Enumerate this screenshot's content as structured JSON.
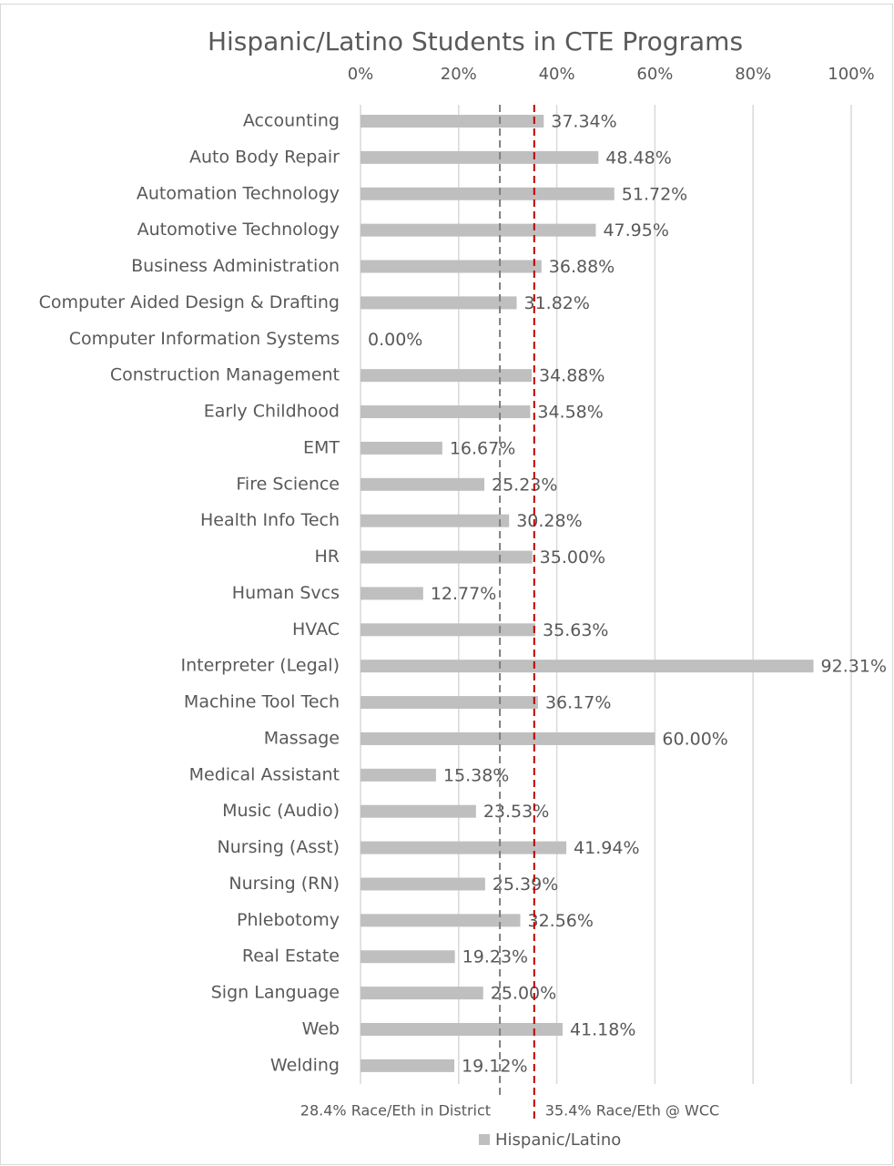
{
  "chart_data": {
    "type": "bar",
    "orientation": "horizontal",
    "title": "Hispanic/Latino Students in CTE Programs",
    "categories": [
      "Accounting",
      "Auto Body Repair",
      "Automation Technology",
      "Automotive Technology",
      "Business Administration",
      "Computer Aided Design & Drafting",
      "Computer Information Systems",
      "Construction Management",
      "Early Childhood",
      "EMT",
      "Fire Science",
      "Health Info Tech",
      "HR",
      "Human Svcs",
      "HVAC",
      "Interpreter (Legal)",
      "Machine Tool Tech",
      "Massage",
      "Medical Assistant",
      "Music (Audio)",
      "Nursing (Asst)",
      "Nursing (RN)",
      "Phlebotomy",
      "Real Estate",
      "Sign Language",
      "Web",
      "Welding"
    ],
    "series": [
      {
        "name": "Hispanic/Latino",
        "color": "#bfbfbf",
        "values": [
          37.34,
          48.48,
          51.72,
          47.95,
          36.88,
          31.82,
          0.0,
          34.88,
          34.58,
          16.67,
          25.23,
          30.28,
          35.0,
          12.77,
          35.63,
          92.31,
          36.17,
          60.0,
          15.38,
          23.53,
          41.94,
          25.39,
          32.56,
          19.23,
          25.0,
          41.18,
          19.12
        ],
        "value_labels": [
          "37.34%",
          "48.48%",
          "51.72%",
          "47.95%",
          "36.88%",
          "31.82%",
          "0.00%",
          "34.88%",
          "34.58%",
          "16.67%",
          "25.23%",
          "30.28%",
          "35.00%",
          "12.77%",
          "35.63%",
          "92.31%",
          "36.17%",
          "60.00%",
          "15.38%",
          "23.53%",
          "41.94%",
          "25.39%",
          "32.56%",
          "19.23%",
          "25.00%",
          "41.18%",
          "19.12%"
        ]
      }
    ],
    "xlim": [
      0,
      100
    ],
    "xticks": [
      {
        "value": 0,
        "label": "0%"
      },
      {
        "value": 20,
        "label": "20%"
      },
      {
        "value": 40,
        "label": "40%"
      },
      {
        "value": 60,
        "label": "60%"
      },
      {
        "value": 80,
        "label": "80%"
      },
      {
        "value": 100,
        "label": "100%"
      }
    ],
    "grid": true,
    "reference_lines": [
      {
        "value": 28.4,
        "label": "28.4% Race/Eth in District",
        "color": "#7f7f7f"
      },
      {
        "value": 35.4,
        "label": "35.4% Race/Eth @ WCC",
        "color": "#c00000"
      }
    ],
    "legend": "bottom"
  }
}
